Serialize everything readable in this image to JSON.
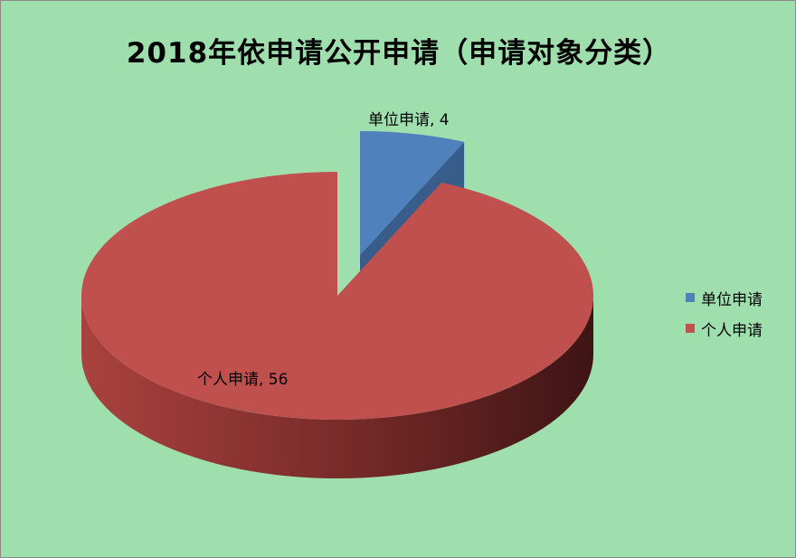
{
  "chart_data": {
    "type": "pie",
    "style": "3d-exploded",
    "title": "2018年依申请公开申请（申请对象分类）",
    "categories": [
      "单位申请",
      "个人申请"
    ],
    "values": [
      4,
      56
    ],
    "colors": [
      "#4f81bd",
      "#c0504d"
    ],
    "data_labels": [
      "单位申请, 4",
      "个人申请, 56"
    ],
    "legend": {
      "placement": "right",
      "entries": [
        "单位申请",
        "个人申请"
      ]
    },
    "background": "#9fdfae"
  }
}
